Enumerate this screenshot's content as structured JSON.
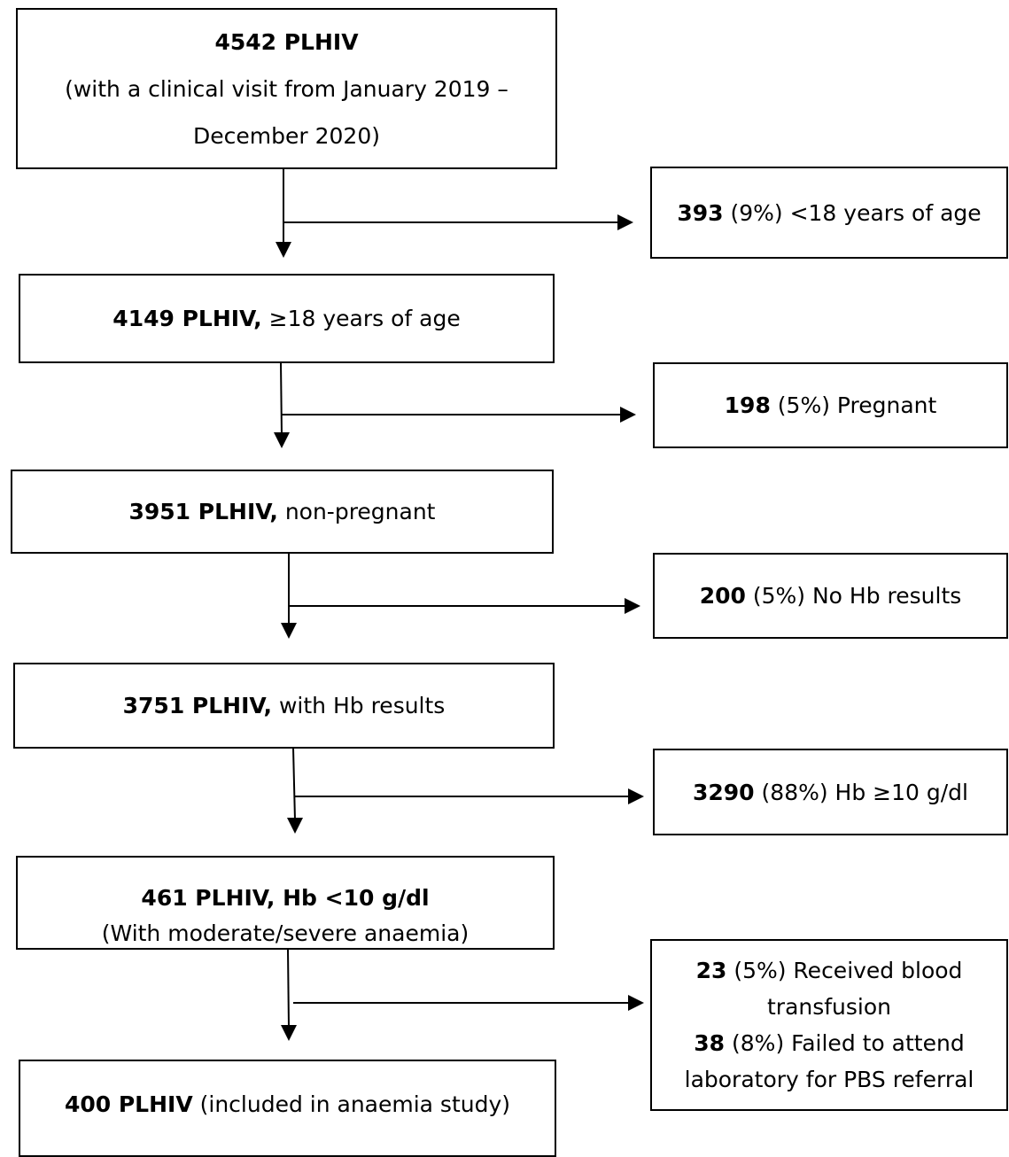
{
  "main_boxes": [
    {
      "bold": "4542 PLHIV",
      "rest": "",
      "line2": "(with a clinical visit from January 2019 –",
      "line3": "December 2020)"
    },
    {
      "bold": "4149 PLHIV,",
      "rest": " ≥18 years of age"
    },
    {
      "bold": "3951 PLHIV,",
      "rest": " non-pregnant"
    },
    {
      "bold": "3751 PLHIV,",
      "rest": " with Hb results"
    },
    {
      "bold": "461 PLHIV, Hb <10 g/dl",
      "rest": "",
      "line2": "(With moderate/severe anaemia)"
    },
    {
      "bold": "400 PLHIV",
      "rest": " (included in anaemia study)"
    }
  ],
  "exclusion_boxes": [
    {
      "bold": "393",
      "rest": " (9%) <18 years of age"
    },
    {
      "bold": "198",
      "rest": " (5%) Pregnant"
    },
    {
      "bold": "200",
      "rest": " (5%) No Hb results"
    },
    {
      "bold": "3290",
      "rest": " (88%) Hb ≥10 g/dl"
    },
    {
      "bold": "23",
      "rest": " (5%) Received blood",
      "line2": "transfusion",
      "bold3": "38",
      "rest3": " (8%) Failed to attend",
      "line4": "laboratory for PBS referral"
    }
  ]
}
